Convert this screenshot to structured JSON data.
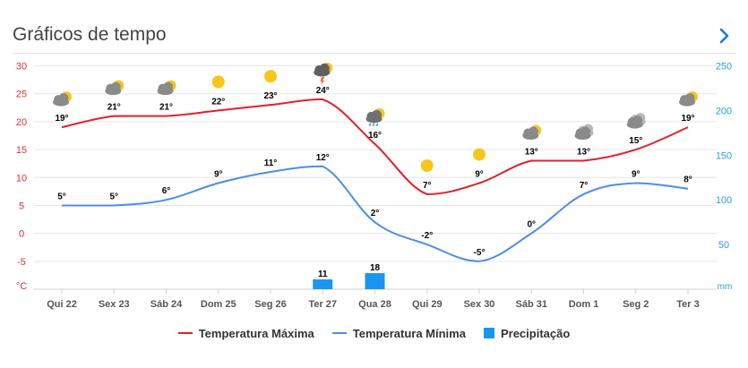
{
  "title": "Gráficos de tempo",
  "colors": {
    "max": "#e32028",
    "min": "#4a8fe7",
    "precip": "#1a96f0",
    "left_axis": "#e03030",
    "right_axis": "#2a9fd8",
    "sun": "#f8c51c",
    "cloud": "#8a8a8a",
    "rain": "#1a96f0",
    "thunder": "#f07020"
  },
  "legend": {
    "max": "Temperatura Máxima",
    "min": "Temperatura Mínima",
    "precip": "Precipitação"
  },
  "chart_data": {
    "type": "line",
    "categories": [
      "Qui 22",
      "Sex 23",
      "Sáb 24",
      "Dom 25",
      "Seg 26",
      "Ter 27",
      "Qua 28",
      "Qui 29",
      "Sex 30",
      "Sáb 31",
      "Dom 1",
      "Seg 2",
      "Ter 3"
    ],
    "series": [
      {
        "name": "Temperatura Máxima",
        "axis": "left",
        "values": [
          19,
          21,
          21,
          22,
          23,
          24,
          16,
          7,
          9,
          13,
          13,
          15,
          19
        ]
      },
      {
        "name": "Temperatura Mínima",
        "axis": "left",
        "values": [
          5,
          5,
          6,
          9,
          11,
          12,
          2,
          -2,
          -5,
          0,
          7,
          9,
          8
        ]
      },
      {
        "name": "Precipitação",
        "type": "bar",
        "axis": "right",
        "values": [
          0,
          0,
          0,
          0,
          0,
          11,
          18,
          0,
          0,
          0,
          0,
          0,
          0
        ]
      }
    ],
    "left_axis": {
      "unit": "°C",
      "ticks": [
        -5,
        0,
        5,
        10,
        15,
        20,
        25,
        30
      ],
      "range": [
        -10,
        30
      ]
    },
    "right_axis": {
      "unit": "mm",
      "ticks": [
        50,
        100,
        150,
        200,
        250
      ],
      "range": [
        0,
        250
      ]
    },
    "icons": [
      "partly-cloudy-rain",
      "partly-cloudy",
      "partly-cloudy",
      "sunny",
      "sunny",
      "thunderstorm",
      "rain",
      "sunny",
      "sunny",
      "partly-cloudy",
      "cloudy",
      "cloudy",
      "partly-cloudy"
    ]
  }
}
